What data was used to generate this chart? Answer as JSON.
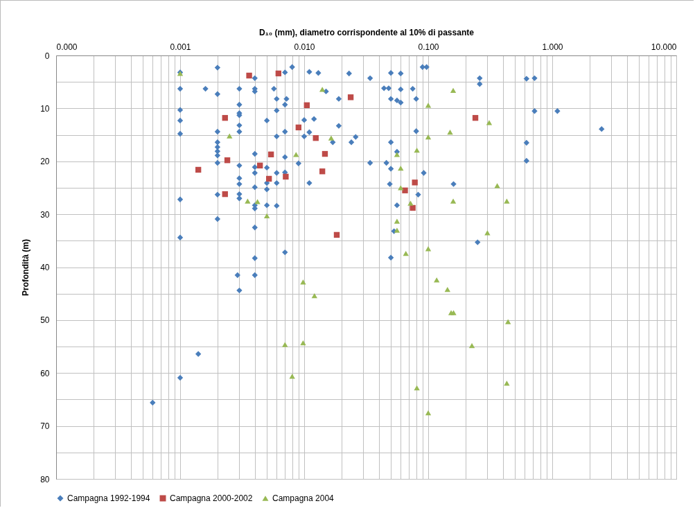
{
  "chart_data": {
    "type": "scatter",
    "xlabel": "D₁₀ (mm), diametro corrispondente al 10% di passante",
    "ylabel": "Profondità (m)",
    "log": "x",
    "grid": true,
    "legend": "bottom",
    "xlim": [
      0.0001,
      10
    ],
    "xticks": [
      {
        "value": 0.0001,
        "label": "0.000"
      },
      {
        "value": 0.001,
        "label": "0.001"
      },
      {
        "value": 0.01,
        "label": "0.010"
      },
      {
        "value": 0.1,
        "label": "0.100"
      },
      {
        "value": 1,
        "label": "1.000"
      },
      {
        "value": 10,
        "label": "10.000"
      }
    ],
    "ylim": [
      80,
      0
    ],
    "yticks": [
      0,
      {
        "value": 5,
        "label": null
      },
      10,
      {
        "value": 15,
        "label": null
      },
      20,
      {
        "value": 25,
        "label": null
      },
      30,
      {
        "value": 35,
        "label": null
      },
      40,
      {
        "value": 45,
        "label": null
      },
      50,
      {
        "value": 55,
        "label": null
      },
      60,
      {
        "value": 65,
        "label": null
      },
      70,
      {
        "value": 75,
        "label": null
      },
      80
    ],
    "series": [
      {
        "name": "Campagna 1992-1994",
        "color": "#4a7ebb",
        "marker": "diamond",
        "x": [
          0.001,
          0.002,
          0.004,
          0.008,
          0.007,
          0.011,
          0.013,
          0.001,
          0.0016,
          0.002,
          0.003,
          0.004,
          0.004,
          0.0057,
          0.015,
          0.019,
          0.006,
          0.0072,
          0.007,
          0.003,
          0.006,
          0.001,
          0.003,
          0.003,
          0.01,
          0.012,
          0.005,
          0.001,
          0.019,
          0.003,
          0.003,
          0.002,
          0.007,
          0.011,
          0.01,
          0.006,
          0.017,
          0.001,
          0.002,
          0.002,
          0.002,
          0.002,
          0.004,
          0.007,
          0.009,
          0.002,
          0.003,
          0.004,
          0.005,
          0.004,
          0.006,
          0.007,
          0.003,
          0.003,
          0.005,
          0.005,
          0.006,
          0.011,
          0.004,
          0.002,
          0.003,
          0.003,
          0.001,
          0.004,
          0.004,
          0.005,
          0.006,
          0.002,
          0.004,
          0.001,
          0.007,
          0.004,
          0.0029,
          0.004,
          0.003,
          0.0014,
          0.001,
          0.0006,
          0.053,
          0.25,
          0.05,
          0.023,
          0.034,
          0.05,
          0.06,
          0.09,
          0.097,
          0.26,
          0.26,
          0.62,
          0.72,
          0.044,
          0.048,
          0.06,
          0.075,
          0.05,
          0.056,
          0.06,
          0.08,
          0.72,
          1.1,
          0.08,
          0.026,
          0.024,
          0.05,
          0.62,
          0.056,
          0.62,
          0.034,
          0.046,
          0.05,
          0.092,
          0.049,
          0.16,
          0.083,
          0.056,
          2.5
        ],
        "values": [
          3.2,
          2.3,
          4.3,
          2.2,
          3.2,
          3.1,
          3.3,
          6.3,
          6.3,
          7.3,
          6.3,
          6.3,
          6.8,
          6.3,
          6.8,
          8.2,
          8.2,
          8.2,
          9.3,
          9.3,
          10.4,
          10.3,
          10.9,
          11.3,
          12.2,
          12.0,
          12.3,
          12.3,
          13.3,
          13.2,
          14.4,
          14.4,
          14.4,
          14.5,
          15.3,
          15.3,
          16.4,
          14.8,
          16.4,
          17.3,
          18.1,
          18.9,
          18.6,
          19.2,
          20.4,
          20.3,
          20.8,
          21.1,
          21.2,
          22.2,
          22.2,
          22.1,
          23.2,
          24.3,
          24.1,
          25.3,
          24.1,
          24.1,
          24.9,
          26.3,
          26.2,
          27.0,
          27.2,
          28.3,
          28.9,
          28.3,
          28.4,
          30.9,
          32.5,
          34.4,
          37.2,
          38.3,
          41.5,
          41.5,
          44.4,
          56.4,
          60.9,
          65.6,
          33.2,
          35.3,
          38.2,
          3.4,
          4.3,
          3.3,
          3.4,
          2.2,
          2.2,
          4.3,
          5.4,
          4.4,
          4.3,
          6.2,
          6.2,
          6.4,
          6.3,
          8.2,
          8.5,
          8.9,
          8.2,
          10.5,
          10.5,
          14.3,
          15.4,
          16.4,
          16.4,
          16.5,
          18.2,
          19.9,
          20.3,
          20.3,
          21.4,
          22.2,
          24.3,
          24.3,
          26.3,
          28.3,
          13.9
        ]
      },
      {
        "name": "Campagna 2000-2002",
        "color": "#be4b48",
        "marker": "square",
        "x": [
          0.0036,
          0.0062,
          0.0105,
          0.0023,
          0.009,
          0.0124,
          0.0054,
          0.0147,
          0.0024,
          0.0014,
          0.0044,
          0.014,
          0.0052,
          0.0071,
          0.0023,
          0.0237,
          0.24,
          0.078,
          0.065,
          0.075,
          0.0183
        ],
        "values": [
          3.8,
          3.4,
          9.4,
          11.8,
          13.6,
          15.6,
          18.7,
          18.6,
          19.8,
          21.6,
          20.8,
          21.9,
          23.3,
          22.9,
          26.2,
          7.9,
          11.8,
          24.0,
          25.5,
          28.8,
          33.9
        ]
      },
      {
        "name": "Campagna 2004",
        "color": "#98b954",
        "marker": "triangle",
        "x": [
          0.001,
          0.014,
          0.0025,
          0.0165,
          0.0086,
          0.0035,
          0.0042,
          0.005,
          0.159,
          0.1,
          0.31,
          0.15,
          0.1,
          0.081,
          0.056,
          0.06,
          0.06,
          0.36,
          0.072,
          0.159,
          0.43,
          0.056,
          0.056,
          0.3,
          0.1,
          0.066,
          0.117,
          0.143,
          0.153,
          0.16,
          0.44,
          0.225,
          0.43,
          0.081,
          0.1,
          0.0098,
          0.0121,
          0.007,
          0.0098,
          0.008
        ],
        "values": [
          3.4,
          6.4,
          15.2,
          15.6,
          18.7,
          27.5,
          27.6,
          30.3,
          6.6,
          9.4,
          12.7,
          14.5,
          15.4,
          17.9,
          18.7,
          21.3,
          25.0,
          24.6,
          27.9,
          27.5,
          27.5,
          31.3,
          33.0,
          33.5,
          36.5,
          37.4,
          42.4,
          44.2,
          48.6,
          48.6,
          50.3,
          54.8,
          61.9,
          62.8,
          67.5,
          42.8,
          45.4,
          54.6,
          54.3,
          60.6
        ]
      }
    ]
  }
}
